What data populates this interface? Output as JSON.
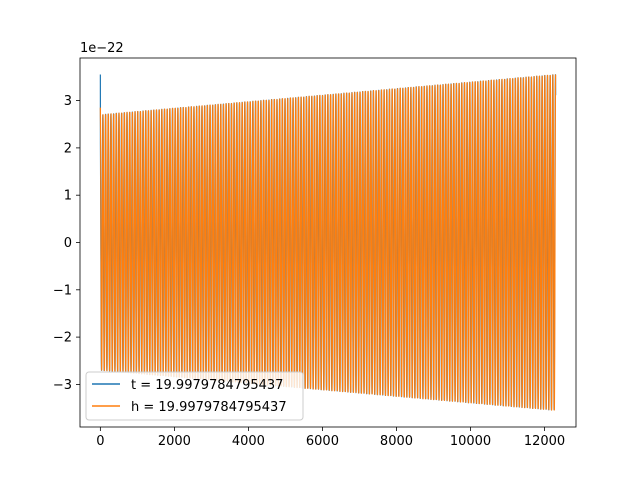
{
  "chart_data": {
    "type": "line",
    "title": "",
    "xlabel": "",
    "ylabel": "",
    "y_offset_label": "1e−22",
    "xlim": [
      -550,
      12850
    ],
    "ylim": [
      -3.9,
      3.9
    ],
    "xticks": [
      0,
      2000,
      4000,
      6000,
      8000,
      10000,
      12000
    ],
    "xtick_labels": [
      "0",
      "2000",
      "4000",
      "6000",
      "8000",
      "10000",
      "12000"
    ],
    "yticks": [
      -3,
      -2,
      -1,
      0,
      1,
      2,
      3
    ],
    "ytick_labels": [
      "−3",
      "−2",
      "−1",
      "0",
      "1",
      "2",
      "3"
    ],
    "grid": false,
    "legend_position": "lower-left",
    "series": [
      {
        "name": "t = 19.9979784795437",
        "color": "#1f77b4",
        "x_range": [
          0,
          12300
        ],
        "amplitude_start": 2.7,
        "amplitude_end": 3.55,
        "initial_spike": 3.55,
        "cycles": 170,
        "phase": 0.5
      },
      {
        "name": "h = 19.9979784795437",
        "color": "#ff7f0e",
        "x_range": [
          0,
          12300
        ],
        "amplitude_start": 2.7,
        "amplitude_end": 3.55,
        "initial_spike": 2.85,
        "cycles": 170,
        "phase": 0.0
      }
    ]
  }
}
